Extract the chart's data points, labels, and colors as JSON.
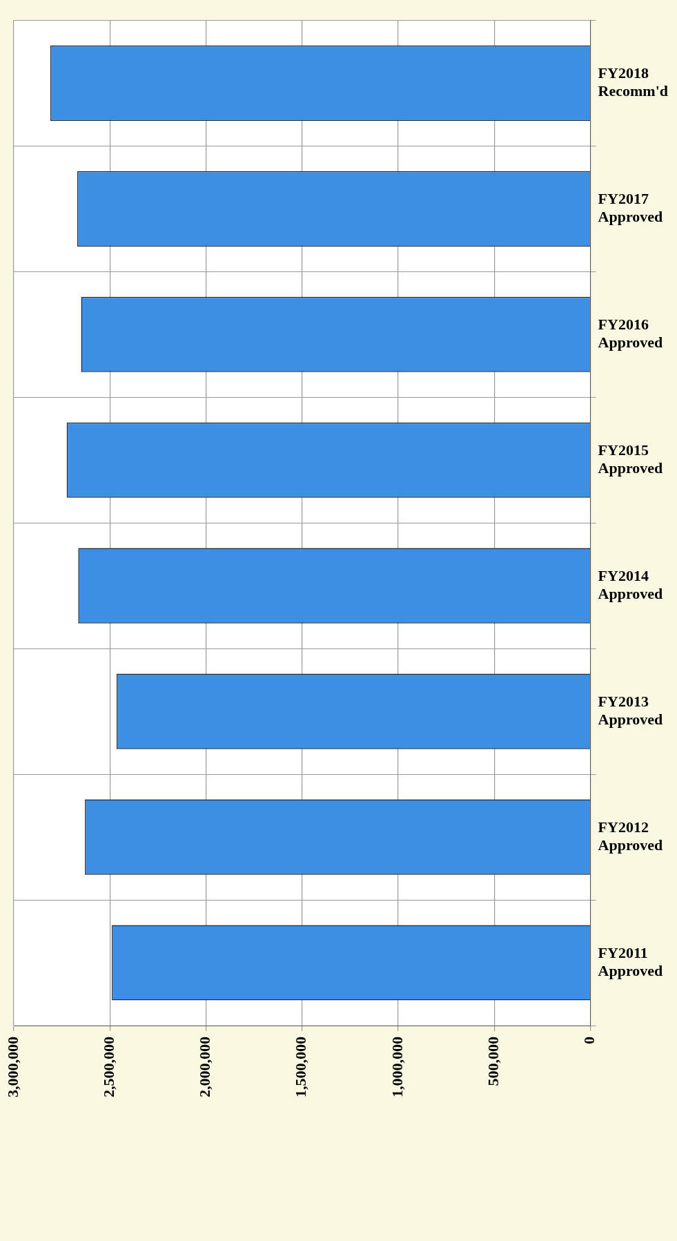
{
  "chart_data": {
    "type": "bar",
    "orientation": "horizontal",
    "categories": [
      "FY2018 Recomm'd",
      "FY2017 Approved",
      "FY2016 Approved",
      "FY2015 Approved",
      "FY2014 Approved",
      "FY2013 Approved",
      "FY2012 Approved",
      "FY2011 Approved"
    ],
    "values": [
      2810000,
      2670000,
      2650000,
      2725000,
      2665000,
      2465000,
      2630000,
      2490000
    ],
    "color": "#3d8fe3",
    "xlim": [
      3000000,
      0
    ],
    "xticks": [
      {
        "value": 3000000,
        "label": "3,000,000"
      },
      {
        "value": 2500000,
        "label": "2,500,000"
      },
      {
        "value": 2000000,
        "label": "2,000,000"
      },
      {
        "value": 1500000,
        "label": "1,500,000"
      },
      {
        "value": 1000000,
        "label": "1,000,000"
      },
      {
        "value": 500000,
        "label": "500,000"
      },
      {
        "value": 0,
        "label": "0"
      }
    ],
    "grid": true
  }
}
